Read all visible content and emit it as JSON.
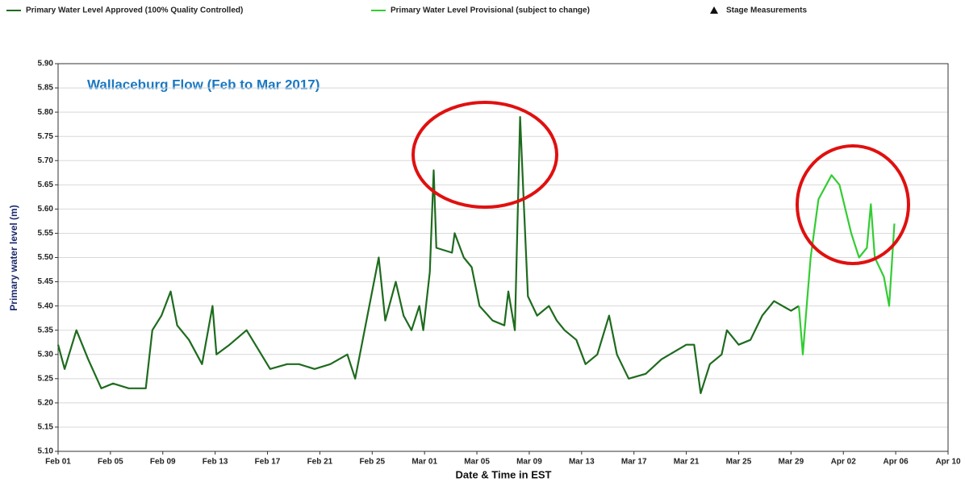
{
  "chart_data": {
    "type": "line",
    "title": "Wallaceburg Flow (Feb to Mar 2017)",
    "x_label": "Date & Time in EST",
    "y_label": "Primary water level (m)",
    "legend_extra": "Stage Measurements",
    "x": [
      0,
      0.5,
      1.4,
      2.3,
      3.3,
      4.2,
      5.4,
      6.7,
      7.2,
      7.9,
      8.6,
      9.1,
      10,
      11,
      11.8,
      12.1,
      13.1,
      14.4,
      15.3,
      16.2,
      17.5,
      18.4,
      19.6,
      20.8,
      22.1,
      22.7,
      24.5,
      25,
      25.8,
      26.4,
      27,
      27.6,
      27.9,
      28.4,
      28.7,
      28.9,
      30.1,
      30.3,
      31,
      31.6,
      32.2,
      33.2,
      34.1,
      34.4,
      34.9,
      35.3,
      35.6,
      35.9,
      36.6,
      37.5,
      38.1,
      38.7,
      39.6,
      40.3,
      41.2,
      42.1,
      42.7,
      43.6,
      44.9,
      46.1,
      48,
      48.6,
      49.1,
      49.8,
      50.7,
      51.1,
      52,
      52.9,
      53.8,
      54.7,
      56,
      56.6,
      56.9,
      57.2,
      57.5,
      58.1,
      59.1,
      59.7,
      60.6,
      61.2,
      61.8,
      62.1,
      62.4,
      63.1,
      63.5,
      63.9
    ],
    "series": [
      {
        "name": "Primary Water Level Approved (100% Quality Controlled)",
        "color": "#1e6b1e",
        "values": [
          5.32,
          5.27,
          5.35,
          5.29,
          5.23,
          5.24,
          5.23,
          5.23,
          5.35,
          5.38,
          5.43,
          5.36,
          5.33,
          5.28,
          5.4,
          5.3,
          5.32,
          5.35,
          5.31,
          5.27,
          5.28,
          5.28,
          5.27,
          5.28,
          5.3,
          5.25,
          5.5,
          5.37,
          5.45,
          5.38,
          5.35,
          5.4,
          5.35,
          5.47,
          5.68,
          5.52,
          5.51,
          5.55,
          5.5,
          5.48,
          5.4,
          5.37,
          5.36,
          5.43,
          5.35,
          5.79,
          5.6,
          5.42,
          5.38,
          5.4,
          5.37,
          5.35,
          5.33,
          5.28,
          5.3,
          5.38,
          5.3,
          5.25,
          5.26,
          5.29,
          5.32,
          5.32,
          5.22,
          5.28,
          5.3,
          5.35,
          5.32,
          5.33,
          5.38,
          5.41,
          5.39,
          5.4,
          null,
          null,
          null,
          null,
          null,
          null,
          null,
          null,
          null,
          null,
          null,
          null,
          null,
          null
        ]
      },
      {
        "name": "Primary Water Level Provisional (subject to change)",
        "color": "#33cc33",
        "values": [
          null,
          null,
          null,
          null,
          null,
          null,
          null,
          null,
          null,
          null,
          null,
          null,
          null,
          null,
          null,
          null,
          null,
          null,
          null,
          null,
          null,
          null,
          null,
          null,
          null,
          null,
          null,
          null,
          null,
          null,
          null,
          null,
          null,
          null,
          null,
          null,
          null,
          null,
          null,
          null,
          null,
          null,
          null,
          null,
          null,
          null,
          null,
          null,
          null,
          null,
          null,
          null,
          null,
          null,
          null,
          null,
          null,
          null,
          null,
          null,
          null,
          null,
          null,
          null,
          null,
          null,
          null,
          null,
          null,
          null,
          null,
          5.4,
          5.3,
          5.4,
          5.5,
          5.62,
          5.67,
          5.65,
          5.55,
          5.5,
          5.52,
          5.61,
          5.5,
          5.46,
          5.4,
          5.57
        ]
      }
    ],
    "xlim": [
      0,
      68
    ],
    "xticks": [
      {
        "value": 0,
        "label": "Feb 01"
      },
      {
        "value": 4,
        "label": "Feb 05"
      },
      {
        "value": 8,
        "label": "Feb 09"
      },
      {
        "value": 12,
        "label": "Feb 13"
      },
      {
        "value": 16,
        "label": "Feb 17"
      },
      {
        "value": 20,
        "label": "Feb 21"
      },
      {
        "value": 24,
        "label": "Feb 25"
      },
      {
        "value": 28,
        "label": "Mar 01"
      },
      {
        "value": 32,
        "label": "Mar 05"
      },
      {
        "value": 36,
        "label": "Mar 09"
      },
      {
        "value": 40,
        "label": "Mar 13"
      },
      {
        "value": 44,
        "label": "Mar 17"
      },
      {
        "value": 48,
        "label": "Mar 21"
      },
      {
        "value": 52,
        "label": "Mar 25"
      },
      {
        "value": 56,
        "label": "Mar 29"
      },
      {
        "value": 60,
        "label": "Apr 02"
      },
      {
        "value": 64,
        "label": "Apr 06"
      },
      {
        "value": 68,
        "label": "Apr 10"
      }
    ],
    "ylim": [
      5.1,
      5.9
    ],
    "yticks": [
      {
        "value": 5.1,
        "label": "5.10"
      },
      5.15,
      {
        "value": 5.2,
        "label": "5.20"
      },
      5.25,
      {
        "value": 5.3,
        "label": "5.30"
      },
      5.35,
      {
        "value": 5.4,
        "label": "5.40"
      },
      5.45,
      {
        "value": 5.5,
        "label": "5.50"
      },
      5.55,
      {
        "value": 5.6,
        "label": "5.60"
      },
      5.65,
      {
        "value": 5.7,
        "label": "5.70"
      },
      5.75,
      {
        "value": 5.8,
        "label": "5.80"
      },
      5.85,
      {
        "value": 5.9,
        "label": "5.90"
      }
    ],
    "grid": true
  }
}
